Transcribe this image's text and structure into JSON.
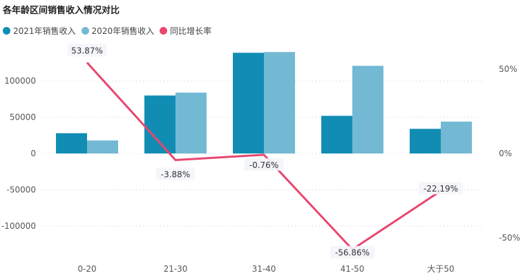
{
  "chart_data": {
    "type": "bar",
    "title": "各年龄区间销售收入情况对比",
    "categories": [
      "0-20",
      "21-30",
      "31-40",
      "41-50",
      "大于50"
    ],
    "series": [
      {
        "name": "2021年销售收入",
        "values": [
          28000,
          80000,
          139000,
          52000,
          34000
        ],
        "color": "#118DB4"
      },
      {
        "name": "2020年销售收入",
        "values": [
          18000,
          84000,
          140000,
          121000,
          44000
        ],
        "color": "#73B9D3"
      }
    ],
    "line_series": {
      "name": "同比增长率",
      "values": [
        53.87,
        -3.88,
        -0.76,
        -56.86,
        -22.19
      ],
      "color": "#E8466F"
    },
    "data_labels": [
      "53.87%",
      "-3.88%",
      "-0.76%",
      "-56.86%",
      "-22.19%"
    ],
    "y_ticks": [
      "-100000",
      "-50000",
      "0",
      "50000",
      "100000"
    ],
    "y_tick_values": [
      -100000,
      -50000,
      0,
      50000,
      100000
    ],
    "y2_ticks": [
      "-50%",
      "0%",
      "50%"
    ],
    "y2_tick_values": [
      -50,
      0,
      50
    ],
    "ylim": [
      -120000,
      142000
    ],
    "y2lim": [
      -60,
      62
    ],
    "legend_position": "top-left",
    "grid": true
  }
}
